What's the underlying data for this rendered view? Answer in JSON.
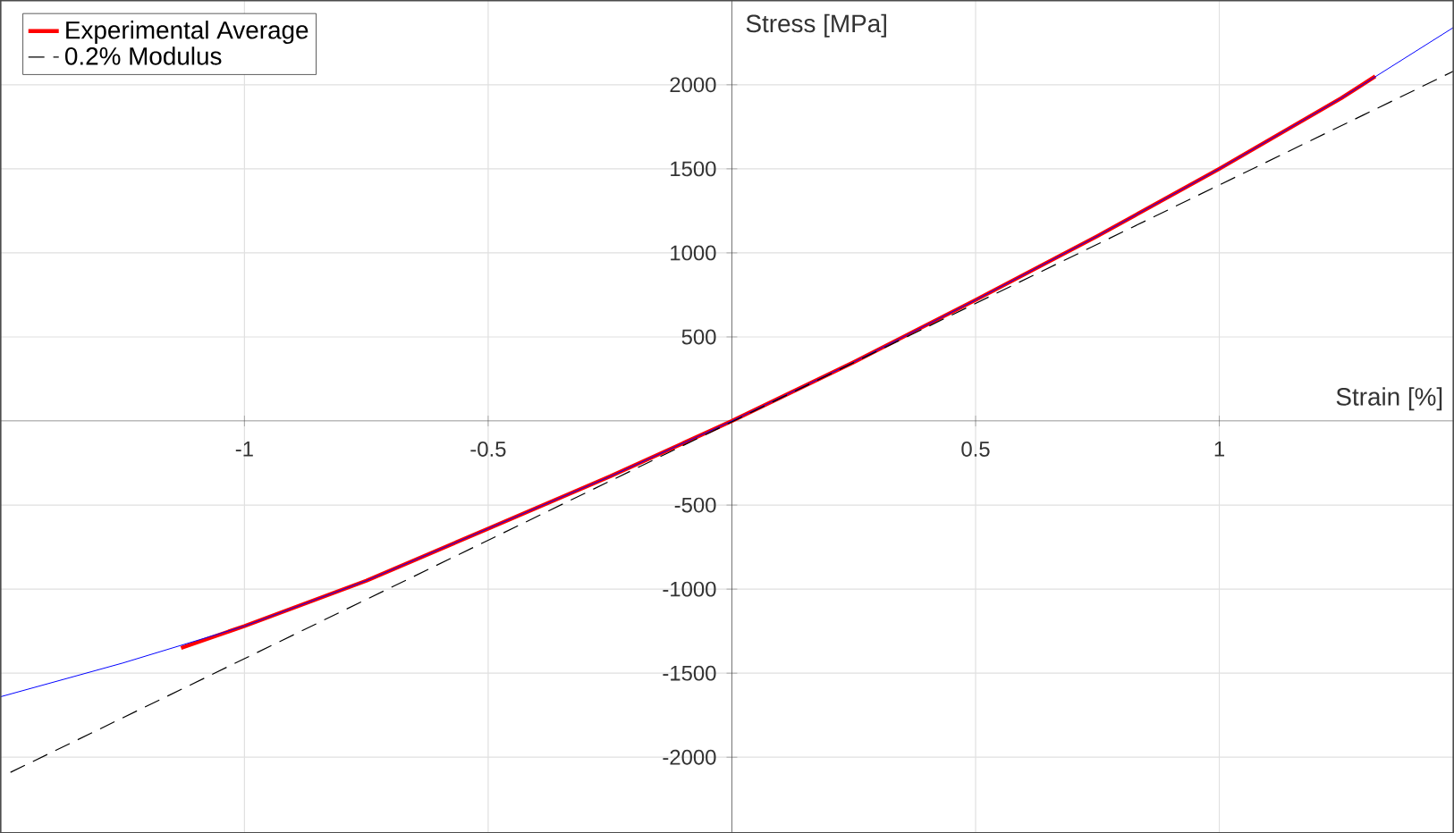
{
  "chart_data": {
    "type": "line",
    "xlabel": "Strain [%]",
    "ylabel": "Stress [MPa]",
    "xlim": [
      -1.5,
      1.48
    ],
    "ylim": [
      -2450,
      2500
    ],
    "xticks": [
      -1,
      -0.5,
      0.5,
      1
    ],
    "yticks": [
      -2000,
      -1500,
      -1000,
      -500,
      500,
      1000,
      1500,
      2000
    ],
    "grid": true,
    "legend": "top left",
    "series": [
      {
        "name": "Experimental Average",
        "color": "#ff0000",
        "x": [
          -1.13,
          -1.0,
          -0.75,
          -0.5,
          -0.25,
          0,
          0.25,
          0.5,
          0.75,
          1.0,
          1.25,
          1.32
        ],
        "values": [
          -1350,
          -1220,
          -950,
          -640,
          -330,
          0,
          350,
          720,
          1100,
          1500,
          1920,
          2050
        ]
      },
      {
        "color": "#0000ff",
        "x": [
          -1.5,
          -1.25,
          -1.0,
          -0.75,
          -0.5,
          -0.25,
          0,
          0.25,
          0.5,
          0.75,
          1.0,
          1.25,
          1.48
        ],
        "values": [
          -1640,
          -1440,
          -1220,
          -950,
          -640,
          -330,
          0,
          350,
          720,
          1100,
          1500,
          1920,
          2340
        ]
      },
      {
        "name": "0.2% Modulus",
        "color": "#000000",
        "line_style": "dashed",
        "x": [
          -1.48,
          1.48
        ],
        "values": [
          -2090,
          2080
        ]
      }
    ]
  }
}
